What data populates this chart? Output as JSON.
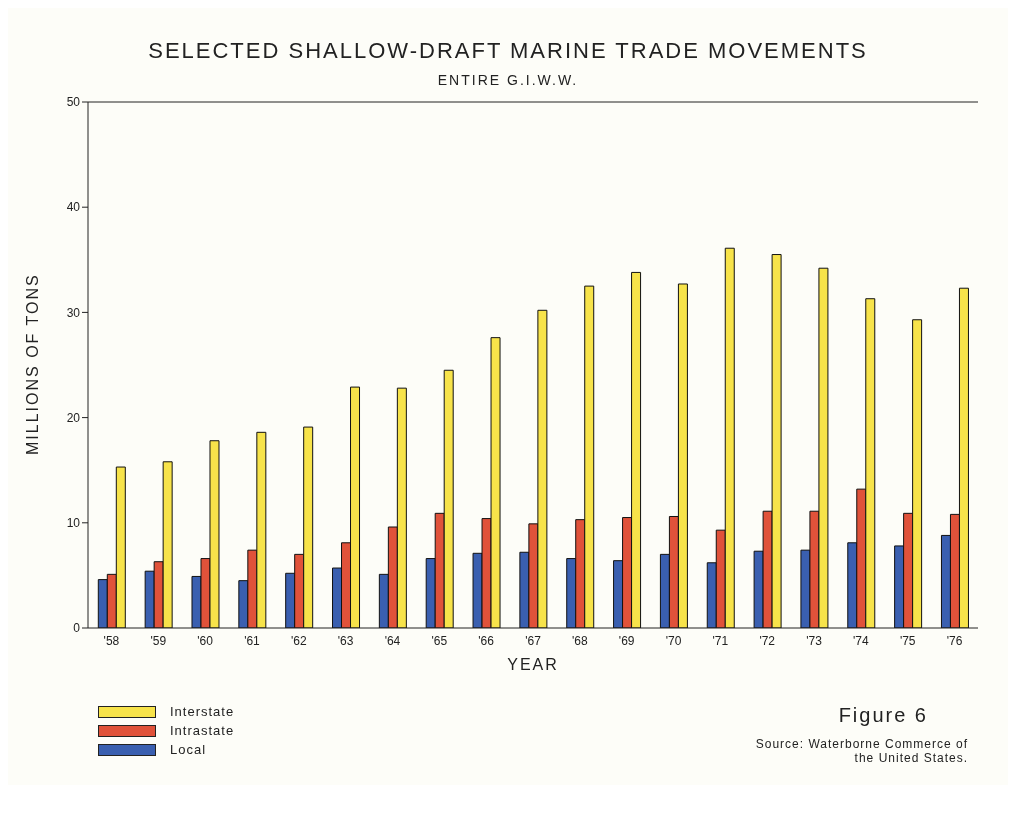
{
  "chart_data": {
    "type": "bar",
    "title": "SELECTED SHALLOW-DRAFT MARINE TRADE MOVEMENTS",
    "subtitle": "ENTIRE G.I.W.W.",
    "xlabel": "YEAR",
    "ylabel": "MILLIONS OF TONS",
    "categories": [
      "'58",
      "'59",
      "'60",
      "'61",
      "'62",
      "'63",
      "'64",
      "'65",
      "'66",
      "'67",
      "'68",
      "'69",
      "'70",
      "'71",
      "'72",
      "'73",
      "'74",
      "'75",
      "'76"
    ],
    "series": [
      {
        "name": "Local",
        "color": "#3a5fb0",
        "values": [
          4.6,
          5.4,
          4.9,
          4.5,
          5.2,
          5.7,
          5.1,
          6.6,
          7.1,
          7.2,
          6.6,
          6.4,
          7.0,
          6.2,
          7.3,
          7.4,
          8.1,
          7.8,
          8.8
        ]
      },
      {
        "name": "Intrastate",
        "color": "#e0523a",
        "values": [
          5.1,
          6.3,
          6.6,
          7.4,
          7.0,
          8.1,
          9.6,
          10.9,
          10.4,
          9.9,
          10.3,
          10.5,
          10.6,
          9.3,
          11.1,
          11.1,
          13.2,
          10.9,
          10.8
        ]
      },
      {
        "name": "Interstate",
        "color": "#f7e34a",
        "values": [
          15.3,
          15.8,
          17.8,
          18.6,
          19.1,
          22.9,
          22.8,
          24.5,
          27.6,
          30.2,
          32.5,
          33.8,
          32.7,
          36.1,
          35.5,
          34.2,
          31.3,
          29.3,
          32.3
        ]
      }
    ],
    "ylim": [
      0,
      50
    ],
    "yticks": [
      0,
      10,
      20,
      30,
      40,
      50
    ],
    "grid": false,
    "legend": "bottom left",
    "annotations": [
      "Figure 6",
      "Source: Waterborne Commerce of the United States."
    ]
  }
}
